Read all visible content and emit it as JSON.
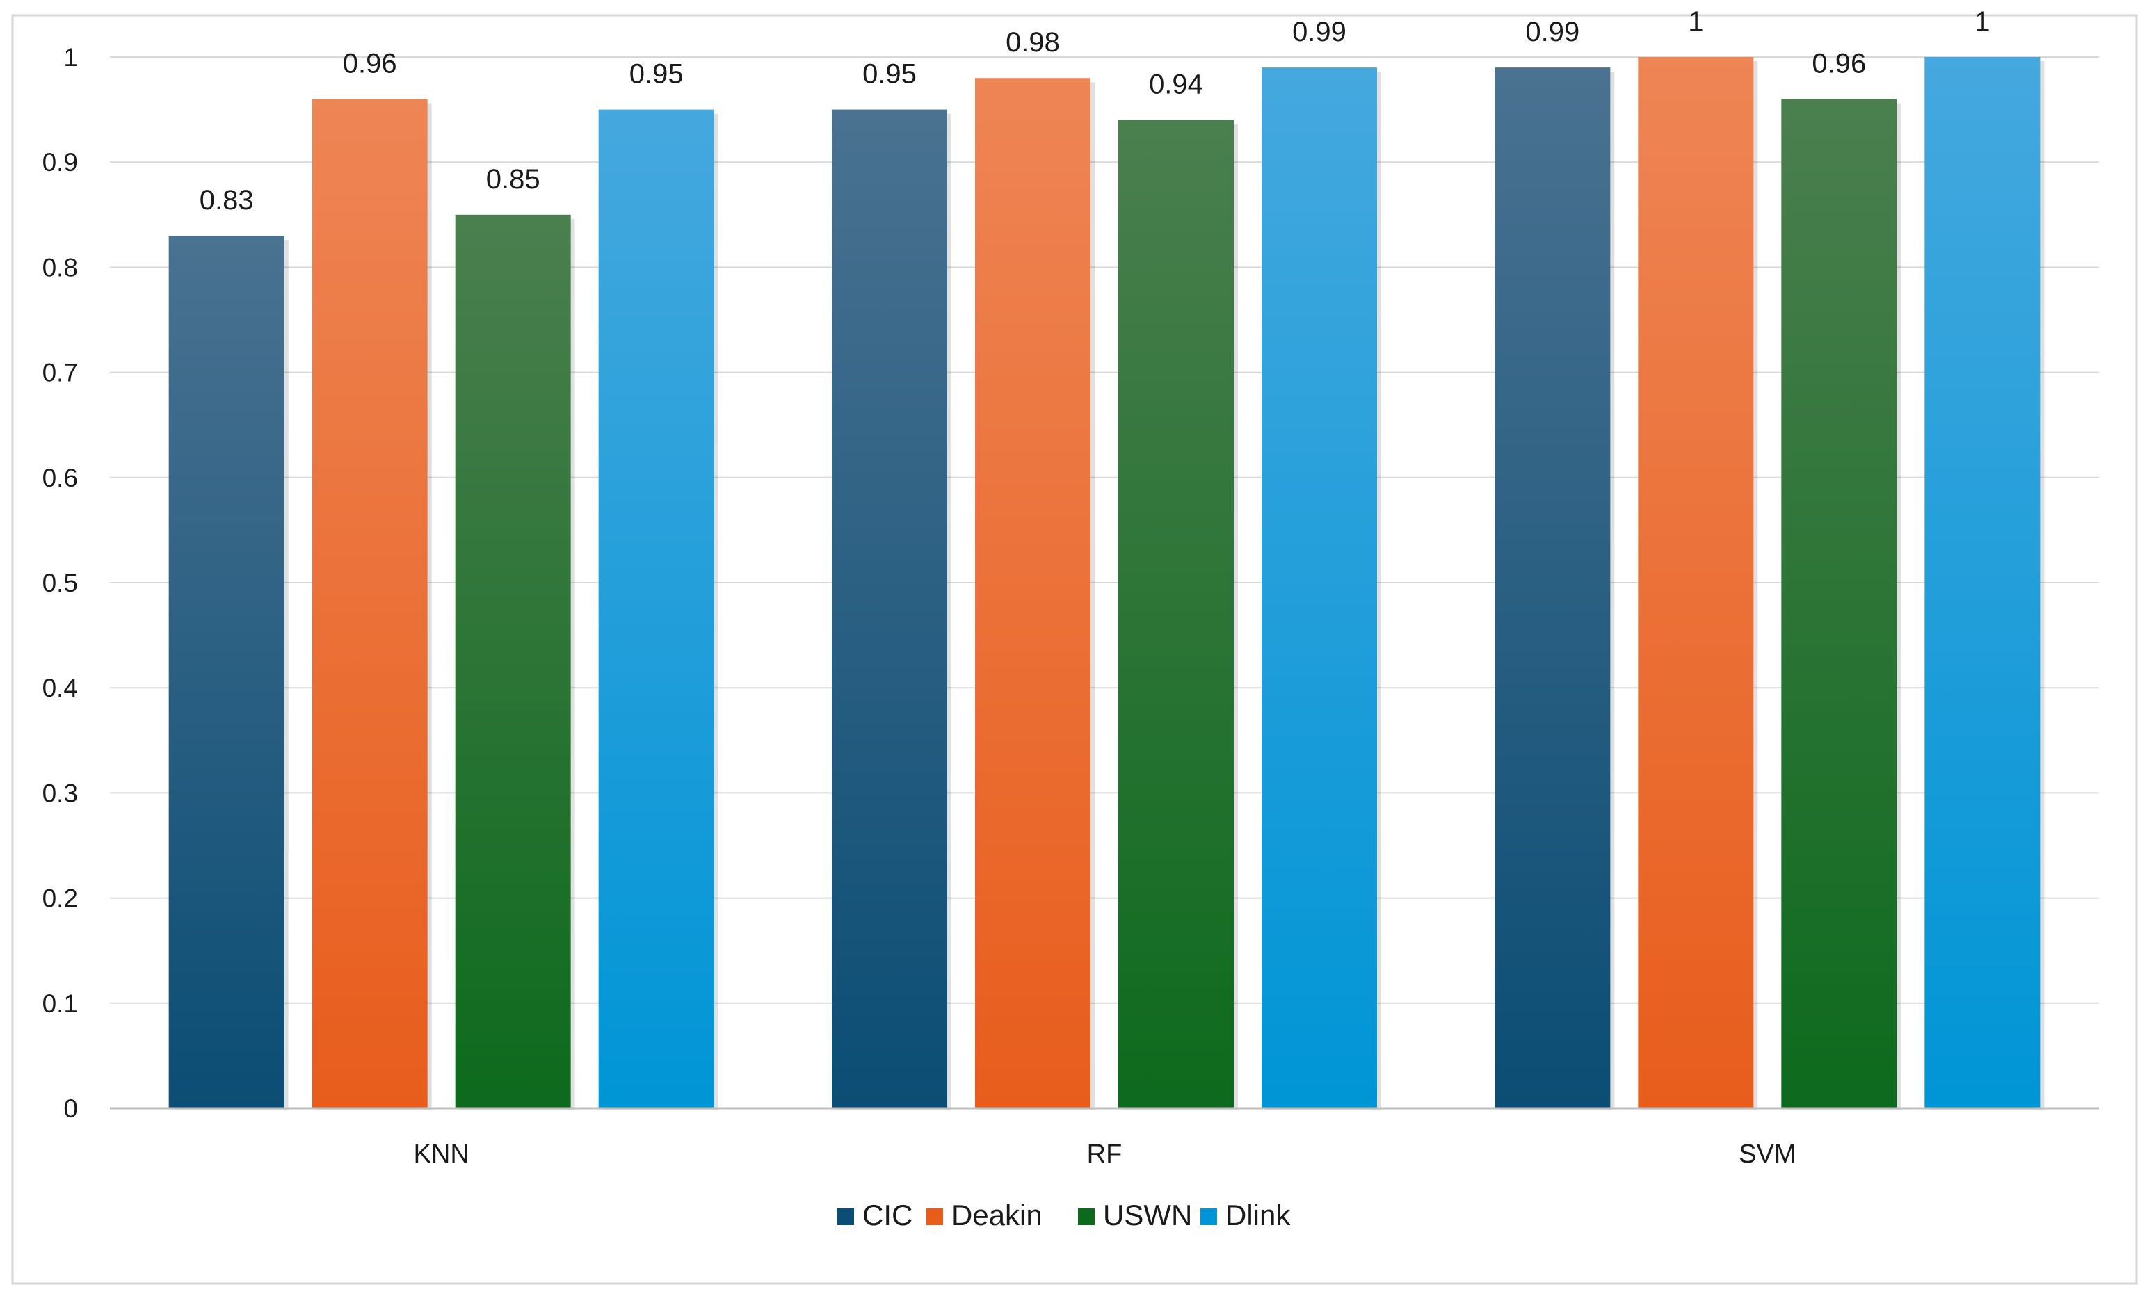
{
  "chart_data": {
    "type": "bar",
    "title": "",
    "xlabel": "",
    "ylabel": "",
    "ylim": [
      0,
      1
    ],
    "yticks": [
      0,
      0.1,
      0.2,
      0.3,
      0.4,
      0.5,
      0.6,
      0.7,
      0.8,
      0.9,
      1
    ],
    "ytick_labels": [
      "0",
      "0.1",
      "0.2",
      "0.3",
      "0.4",
      "0.5",
      "0.6",
      "0.7",
      "0.8",
      "0.9",
      "1"
    ],
    "grid": true,
    "legend_position": "bottom",
    "categories": [
      "KNN",
      "RF",
      "SVM"
    ],
    "series": [
      {
        "name": "CIC",
        "values": [
          0.83,
          0.95,
          0.99
        ],
        "labels": [
          "0.83",
          "0.95",
          "0.99"
        ],
        "color": "#0b4d74",
        "color_top": "#4a7291"
      },
      {
        "name": "Deakin",
        "values": [
          0.96,
          0.98,
          1
        ],
        "labels": [
          "0.96",
          "0.98",
          "1"
        ],
        "color": "#e85d1c",
        "color_top": "#ee8555"
      },
      {
        "name": "USWN",
        "values": [
          0.85,
          0.94,
          0.96
        ],
        "labels": [
          "0.85",
          "0.94",
          "0.96"
        ],
        "color": "#0d6a1d",
        "color_top": "#4b7f4f"
      },
      {
        "name": "Dlink",
        "values": [
          0.95,
          0.99,
          1
        ],
        "labels": [
          "0.95",
          "0.99",
          "1"
        ],
        "color": "#0095d6",
        "color_top": "#45a8de"
      }
    ]
  }
}
